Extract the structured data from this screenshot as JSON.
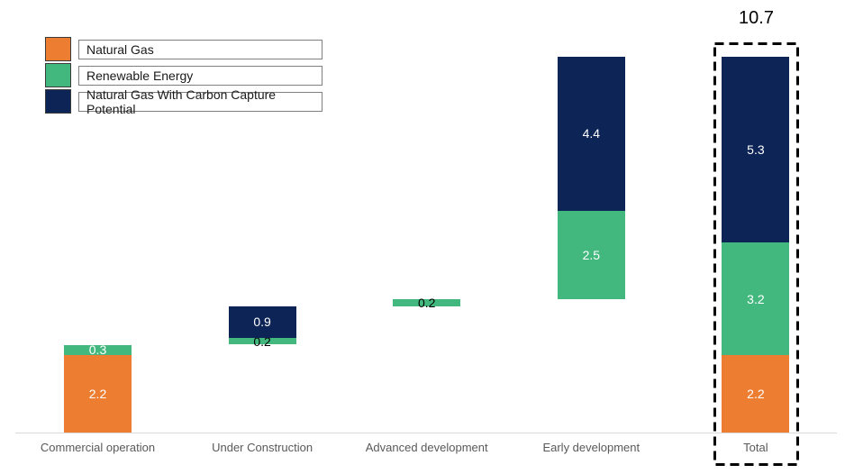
{
  "chart_data": {
    "type": "bar",
    "subtype": "stacked-waterfall",
    "title": "",
    "xlabel": "",
    "ylabel": "",
    "ylim": [
      0,
      11.5
    ],
    "grid": false,
    "legend_position": "top-left",
    "total_annotation": "10.7",
    "categories": [
      "Commercial operation",
      "Under Construction",
      "Advanced development",
      "Early development",
      "Total"
    ],
    "legend": [
      {
        "label": "Natural Gas",
        "color": "#ED7D31"
      },
      {
        "label": "Renewable Energy",
        "color": "#42B87E"
      },
      {
        "label": "Natural Gas With Carbon Capture Potential",
        "color": "#0D2456"
      }
    ],
    "bars": [
      {
        "category": "Commercial operation",
        "base": 0.0,
        "highlighted": false,
        "segments": [
          {
            "series": "Natural Gas",
            "value": 2.2,
            "label": "2.2",
            "label_color": "#FFFFFF"
          },
          {
            "series": "Renewable Energy",
            "value": 0.3,
            "label": "0.3",
            "label_color": "#FFFFFF"
          }
        ]
      },
      {
        "category": "Under Construction",
        "base": 2.5,
        "highlighted": false,
        "segments": [
          {
            "series": "Renewable Energy",
            "value": 0.2,
            "label": "0.2",
            "label_color": "#000000"
          },
          {
            "series": "Natural Gas With Carbon Capture Potential",
            "value": 0.9,
            "label": "0.9",
            "label_color": "#FFFFFF"
          }
        ]
      },
      {
        "category": "Advanced development",
        "base": 3.6,
        "highlighted": false,
        "segments": [
          {
            "series": "Renewable Energy",
            "value": 0.2,
            "label": "0.2",
            "label_color": "#000000"
          }
        ]
      },
      {
        "category": "Early development",
        "base": 3.8,
        "highlighted": false,
        "segments": [
          {
            "series": "Renewable Energy",
            "value": 2.5,
            "label": "2.5",
            "label_color": "#FFFFFF"
          },
          {
            "series": "Natural Gas With Carbon Capture Potential",
            "value": 4.4,
            "label": "4.4",
            "label_color": "#FFFFFF"
          }
        ]
      },
      {
        "category": "Total",
        "base": 0.0,
        "highlighted": true,
        "segments": [
          {
            "series": "Natural Gas",
            "value": 2.2,
            "label": "2.2",
            "label_color": "#FFFFFF"
          },
          {
            "series": "Renewable Energy",
            "value": 3.2,
            "label": "3.2",
            "label_color": "#FFFFFF"
          },
          {
            "series": "Natural Gas With Carbon Capture Potential",
            "value": 5.3,
            "label": "5.3",
            "label_color": "#FFFFFF"
          }
        ]
      }
    ],
    "axis": {
      "baseline_color": "#D9D9D9",
      "category_label_color": "#595959"
    }
  }
}
